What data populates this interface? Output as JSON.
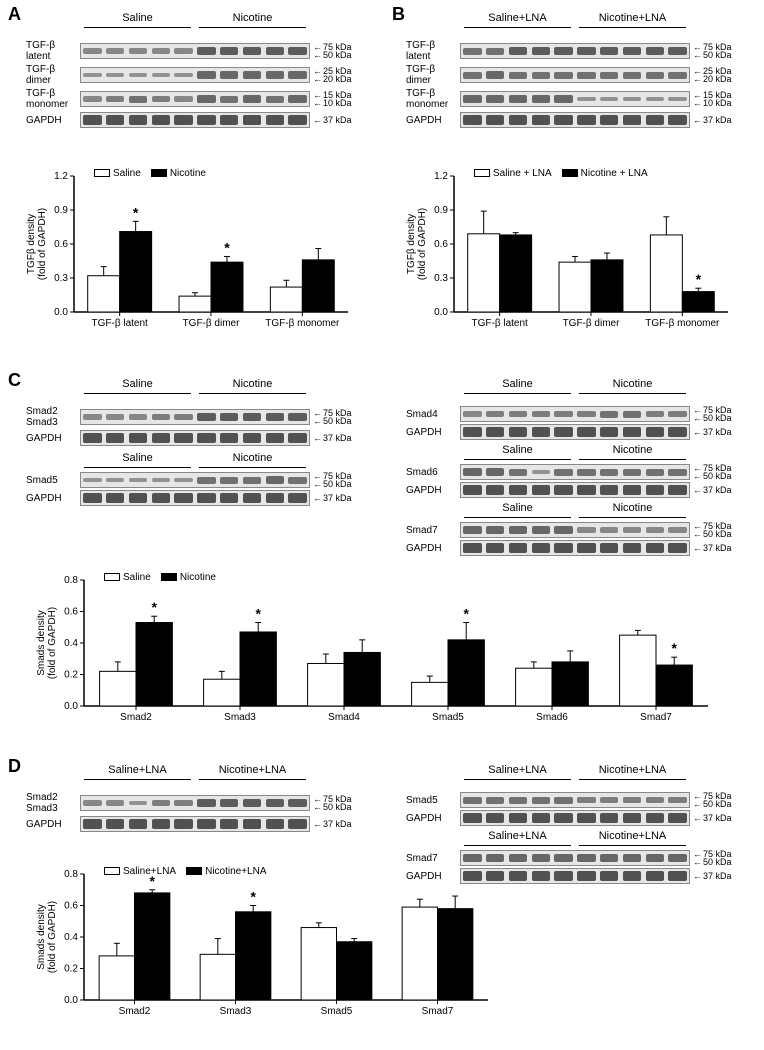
{
  "panels": {
    "A": {
      "letter": "A"
    },
    "B": {
      "letter": "B"
    },
    "C": {
      "letter": "C"
    },
    "D": {
      "letter": "D"
    }
  },
  "conditions": {
    "saline": "Saline",
    "nicotine": "Nicotine",
    "salineLNA": "Saline+LNA",
    "nicotineLNA": "Nicotine+LNA",
    "salineLNA_sp": "Saline + LNA",
    "nicotineLNA_sp": "Nicotine + LNA"
  },
  "proteins": {
    "tgfb_latent": "TGF-β latent",
    "tgfb_dimer": "TGF-β dimer",
    "tgfb_monomer": "TGF-β\nmonomer",
    "gapdh": "GAPDH",
    "smad2": "Smad2",
    "smad3": "Smad3",
    "smad4": "Smad4",
    "smad5": "Smad5",
    "smad6": "Smad6",
    "smad7": "Smad7"
  },
  "kda": {
    "k75": "75 kDa",
    "k50": "50 kDa",
    "k37": "37 kDa",
    "k25": "25 kDa",
    "k20": "20 kDa",
    "k15": "15 kDa",
    "k10": "10 kDa"
  },
  "chartA": {
    "type": "bar",
    "ylabel": "TGFβ density\n(fold of GAPDH)",
    "ylim": [
      0,
      1.2
    ],
    "ytick_step": 0.3,
    "legend": [
      "Saline",
      "Nicotine"
    ],
    "categories": [
      "TGF-β latent",
      "TGF-β dimer",
      "TGF-β monomer"
    ],
    "series": [
      {
        "name": "Saline",
        "color": "#ffffff",
        "values": [
          0.32,
          0.14,
          0.22
        ],
        "err": [
          0.08,
          0.03,
          0.06
        ]
      },
      {
        "name": "Nicotine",
        "color": "#000000",
        "values": [
          0.71,
          0.44,
          0.46
        ],
        "err": [
          0.09,
          0.05,
          0.1
        ]
      }
    ],
    "stars": [
      [
        0,
        1
      ],
      [
        1,
        1
      ]
    ],
    "label_fontsize": 10,
    "bar_width": 0.35,
    "background": "#ffffff"
  },
  "chartB": {
    "type": "bar",
    "ylabel": "TGFβ density\n(fold of GAPDH)",
    "ylim": [
      0,
      1.2
    ],
    "ytick_step": 0.3,
    "legend": [
      "Saline + LNA",
      "Nicotine + LNA"
    ],
    "categories": [
      "TGF-β latent",
      "TGF-β dimer",
      "TGF-β monomer"
    ],
    "series": [
      {
        "name": "Saline+LNA",
        "color": "#ffffff",
        "values": [
          0.69,
          0.44,
          0.68
        ],
        "err": [
          0.2,
          0.05,
          0.16
        ]
      },
      {
        "name": "Nicotine+LNA",
        "color": "#000000",
        "values": [
          0.68,
          0.46,
          0.18
        ],
        "err": [
          0.02,
          0.06,
          0.03
        ]
      }
    ],
    "stars": [
      [
        2,
        1
      ]
    ],
    "label_fontsize": 10,
    "bar_width": 0.35,
    "background": "#ffffff"
  },
  "chartC": {
    "type": "bar",
    "ylabel": "Smads density\n(fold of GAPDH)",
    "ylim": [
      0,
      0.8
    ],
    "ytick_step": 0.2,
    "legend": [
      "Saline",
      "Nicotine"
    ],
    "categories": [
      "Smad2",
      "Smad3",
      "Smad4",
      "Smad5",
      "Smad6",
      "Smad7"
    ],
    "series": [
      {
        "name": "Saline",
        "color": "#ffffff",
        "values": [
          0.22,
          0.17,
          0.27,
          0.15,
          0.24,
          0.45
        ],
        "err": [
          0.06,
          0.05,
          0.06,
          0.04,
          0.04,
          0.03
        ]
      },
      {
        "name": "Nicotine",
        "color": "#000000",
        "values": [
          0.53,
          0.47,
          0.34,
          0.42,
          0.28,
          0.26
        ],
        "err": [
          0.04,
          0.06,
          0.08,
          0.11,
          0.07,
          0.05
        ]
      }
    ],
    "stars": [
      [
        0,
        1
      ],
      [
        1,
        1
      ],
      [
        3,
        1
      ],
      [
        5,
        1
      ]
    ],
    "label_fontsize": 10,
    "bar_width": 0.35,
    "background": "#ffffff"
  },
  "chartD": {
    "type": "bar",
    "ylabel": "Smads density\n(fold of GAPDH)",
    "ylim": [
      0,
      0.8
    ],
    "ytick_step": 0.2,
    "legend": [
      "Saline+LNA",
      "Nicotine+LNA"
    ],
    "categories": [
      "Smad2",
      "Smad3",
      "Smad5",
      "Smad7"
    ],
    "series": [
      {
        "name": "Saline+LNA",
        "color": "#ffffff",
        "values": [
          0.28,
          0.29,
          0.46,
          0.59
        ],
        "err": [
          0.08,
          0.1,
          0.03,
          0.05
        ]
      },
      {
        "name": "Nicotine+LNA",
        "color": "#000000",
        "values": [
          0.68,
          0.56,
          0.37,
          0.58
        ],
        "err": [
          0.02,
          0.04,
          0.02,
          0.08
        ]
      }
    ],
    "stars": [
      [
        0,
        1
      ],
      [
        1,
        1
      ]
    ],
    "label_fontsize": 10,
    "bar_width": 0.35,
    "background": "#ffffff"
  },
  "colors": {
    "axis": "#000000",
    "text": "#000000",
    "blot_bg": "#e8e8e8",
    "band_dark": "#2b2b2b"
  }
}
